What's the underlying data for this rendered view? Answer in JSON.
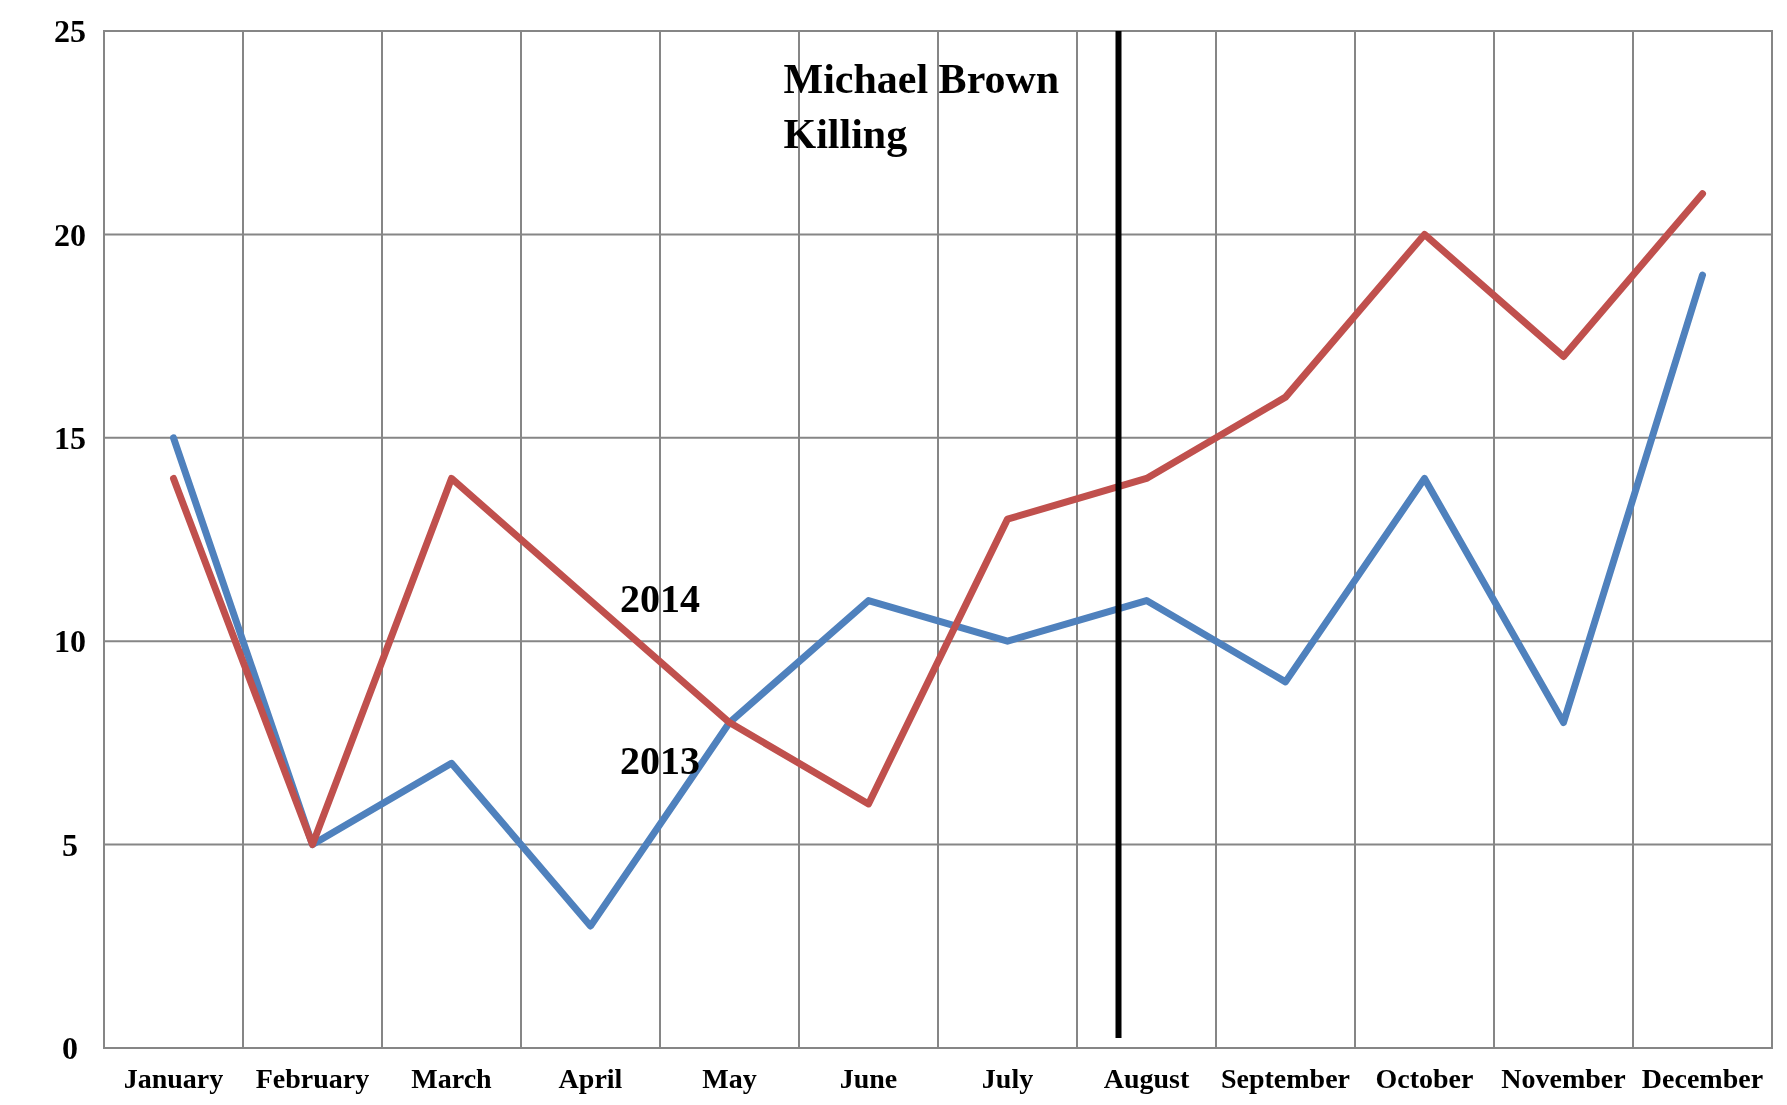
{
  "chart_data": {
    "type": "line",
    "categories": [
      "January",
      "February",
      "March",
      "April",
      "May",
      "June",
      "July",
      "August",
      "September",
      "October",
      "November",
      "December"
    ],
    "series": [
      {
        "name": "2013",
        "color": "#4f81bd",
        "values": [
          15,
          5,
          7,
          3,
          8,
          11,
          10,
          11,
          9,
          14,
          8,
          19
        ]
      },
      {
        "name": "2014",
        "color": "#c0504d",
        "values": [
          14,
          5,
          14,
          11,
          8,
          6,
          13,
          14,
          16,
          20,
          17,
          21
        ]
      }
    ],
    "ylim": [
      0,
      25
    ],
    "yticks": [
      0,
      5,
      10,
      15,
      20,
      25
    ],
    "grid": true,
    "marker": "none",
    "line_style": "solid",
    "ref_lines": [
      {
        "axis": "x",
        "value": "August",
        "label": "Michael Brown Killing",
        "color": "#000000"
      }
    ]
  }
}
